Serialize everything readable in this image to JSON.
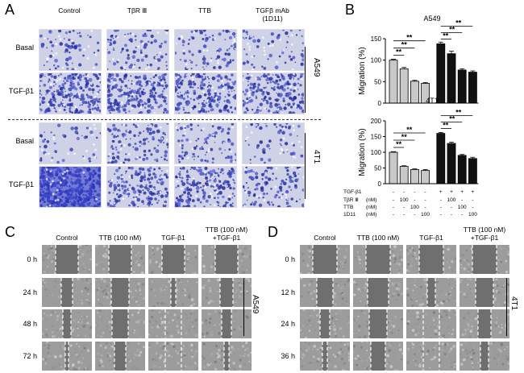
{
  "panelA": {
    "label": "A",
    "columns": [
      "Control",
      "TβR Ⅲ",
      "TTB",
      "TGFβ mAb\n(1D11)"
    ],
    "col_line1": [
      "Control",
      "TβR Ⅲ",
      "TTB",
      "TGFβ mAb"
    ],
    "col_line2": [
      "",
      "",
      "",
      "(1D11)"
    ],
    "rows": [
      "Basal",
      "TGF-β1",
      "Basal",
      "TGF-β1"
    ],
    "groups": [
      "A549",
      "4T1"
    ]
  },
  "panelB": {
    "label": "B",
    "table_rows": [
      {
        "label": "TGF-β1",
        "unit": "",
        "values": [
          "-",
          "-",
          "-",
          "-",
          "+",
          "+",
          "+",
          "+"
        ]
      },
      {
        "label": "TβR Ⅲ",
        "unit": "(nM)",
        "values": [
          "-",
          "100",
          "-",
          "-",
          "-",
          "100",
          "-",
          "-"
        ]
      },
      {
        "label": "TTB",
        "unit": "(nM)",
        "values": [
          "-",
          "-",
          "100",
          "-",
          "-",
          "-",
          "100",
          "-"
        ]
      },
      {
        "label": "1D11",
        "unit": "(nM)",
        "values": [
          "-",
          "-",
          "-",
          "100",
          "-",
          "-",
          "-",
          "100"
        ]
      }
    ],
    "sig": "**"
  },
  "chart_data": [
    {
      "type": "bar",
      "title": "A549",
      "ylabel": "Migration (%)",
      "ylim": [
        0,
        150
      ],
      "yticks": [
        "0",
        "50",
        "100",
        "150"
      ],
      "values": [
        100,
        80,
        51,
        46,
        138,
        115,
        77,
        72
      ],
      "errors": [
        2,
        3,
        2,
        2,
        4,
        6,
        3,
        3
      ],
      "colors": [
        "#c8c8c8",
        "#c8c8c8",
        "#c8c8c8",
        "#c8c8c8",
        "#111111",
        "#111111",
        "#111111",
        "#111111"
      ]
    },
    {
      "type": "bar",
      "title": "4T1",
      "ylabel": "Migration (%)",
      "ylim": [
        0,
        200
      ],
      "yticks": [
        "0",
        "50",
        "100",
        "150",
        "200"
      ],
      "values": [
        100,
        55,
        45,
        42,
        160,
        128,
        90,
        80
      ],
      "errors": [
        2,
        2,
        2,
        3,
        3,
        4,
        3,
        4
      ],
      "colors": [
        "#c8c8c8",
        "#c8c8c8",
        "#c8c8c8",
        "#c8c8c8",
        "#111111",
        "#111111",
        "#111111",
        "#111111"
      ]
    }
  ],
  "panelC": {
    "label": "C",
    "col_line1": [
      "Control",
      "TTB (100 nM)",
      "TGF-β1",
      "TTB (100 nM)"
    ],
    "col_line2": [
      "",
      "",
      "",
      "+TGF-β1"
    ],
    "rows": [
      "0 h",
      "24 h",
      "48 h",
      "72 h"
    ],
    "group": "A549"
  },
  "panelD": {
    "label": "D",
    "col_line1": [
      "Control",
      "TTB (100 nM)",
      "TGF-β1",
      "TTB (100 nM)"
    ],
    "col_line2": [
      "",
      "",
      "",
      "+TGF-β1"
    ],
    "rows": [
      "0 h",
      "12 h",
      "24 h",
      "36 h"
    ],
    "group": "4T1"
  }
}
